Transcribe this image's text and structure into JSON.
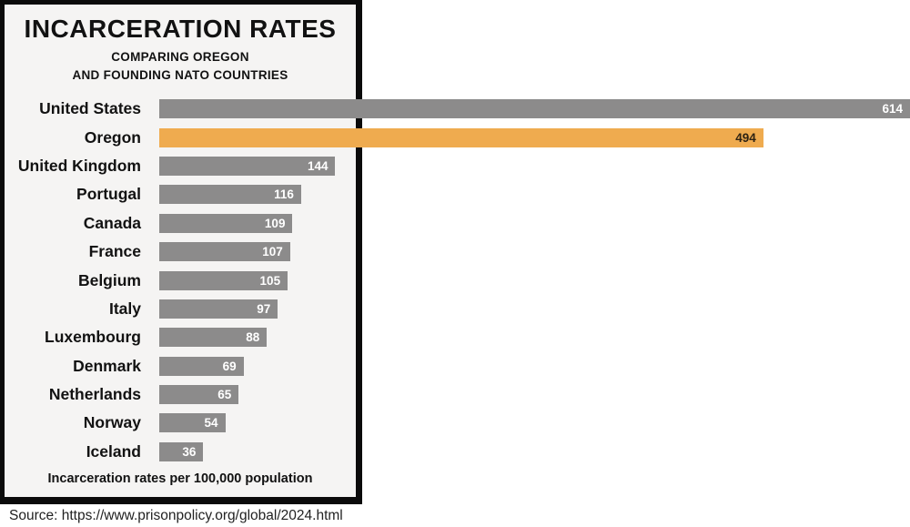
{
  "title": "INCARCERATION RATES",
  "subtitle_line1": "COMPARING OREGON",
  "subtitle_line2": "AND FOUNDING NATO COUNTRIES",
  "caption": "Incarceration rates per 100,000 population",
  "source": "Source: https://www.prisonpolicy.org/global/2024.html",
  "colors": {
    "bar_default": "#8c8b8b",
    "bar_highlight": "#efab4f",
    "value_text_default": "#ffffff",
    "value_text_highlight": "#2e2313",
    "frame_background": "#f5f4f3",
    "frame_border": "#0b0b0b",
    "page_background": "#ffffff",
    "text": "#121212"
  },
  "chart_data": {
    "type": "bar",
    "orientation": "horizontal",
    "title": "INCARCERATION RATES",
    "subtitle": "COMPARING OREGON AND FOUNDING NATO COUNTRIES",
    "xlabel": "Incarceration rates per 100,000 population",
    "xlim": [
      0,
      614
    ],
    "grid": false,
    "legend": false,
    "value_labels": "inside-right",
    "highlight_category": "Oregon",
    "categories": [
      "United States",
      "Oregon",
      "United Kingdom",
      "Portugal",
      "Canada",
      "France",
      "Belgium",
      "Italy",
      "Luxembourg",
      "Denmark",
      "Netherlands",
      "Norway",
      "Iceland"
    ],
    "values": [
      614,
      494,
      144,
      116,
      109,
      107,
      105,
      97,
      88,
      69,
      65,
      54,
      36
    ]
  }
}
